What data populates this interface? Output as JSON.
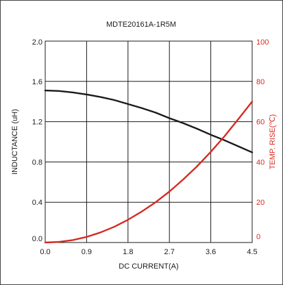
{
  "chart_data": {
    "type": "line",
    "title": "MDTE20161A-1R5M",
    "xlabel": "DC CURRENT(A)",
    "ylabel": "INDUCTANCE (uH)",
    "y2label": "TEMP. RISE(℃)",
    "xlim": [
      0,
      4.5
    ],
    "ylim": [
      0,
      2.0
    ],
    "y2lim": [
      0,
      100
    ],
    "x_ticks": [
      "0.0",
      "0.9",
      "1.8",
      "2.7",
      "3.6",
      "4.5"
    ],
    "y_ticks": [
      "0.0",
      "0.4",
      "0.8",
      "1.2",
      "1.6",
      "2.0"
    ],
    "y2_ticks": [
      "0",
      "20",
      "40",
      "60",
      "80",
      "100"
    ],
    "grid": true,
    "series": [
      {
        "axis": "left",
        "color": "#1a1a1a",
        "x": [
          0,
          0.3,
          0.6,
          0.9,
          1.2,
          1.5,
          1.8,
          2.1,
          2.4,
          2.7,
          3.0,
          3.3,
          3.6,
          3.9,
          4.2,
          4.5
        ],
        "values": [
          1.51,
          1.505,
          1.49,
          1.47,
          1.445,
          1.415,
          1.375,
          1.335,
          1.29,
          1.235,
          1.185,
          1.13,
          1.07,
          1.015,
          0.955,
          0.895
        ]
      },
      {
        "axis": "right",
        "color": "#d42a22",
        "x": [
          0,
          0.3,
          0.6,
          0.9,
          1.2,
          1.5,
          1.8,
          2.1,
          2.4,
          2.7,
          3.0,
          3.3,
          3.6,
          3.9,
          4.2,
          4.5
        ],
        "values": [
          0,
          0.3,
          1.2,
          2.8,
          5.0,
          7.8,
          11.3,
          15.4,
          20.0,
          25.3,
          31.3,
          37.8,
          45.0,
          52.8,
          61.3,
          70.0
        ]
      }
    ]
  }
}
